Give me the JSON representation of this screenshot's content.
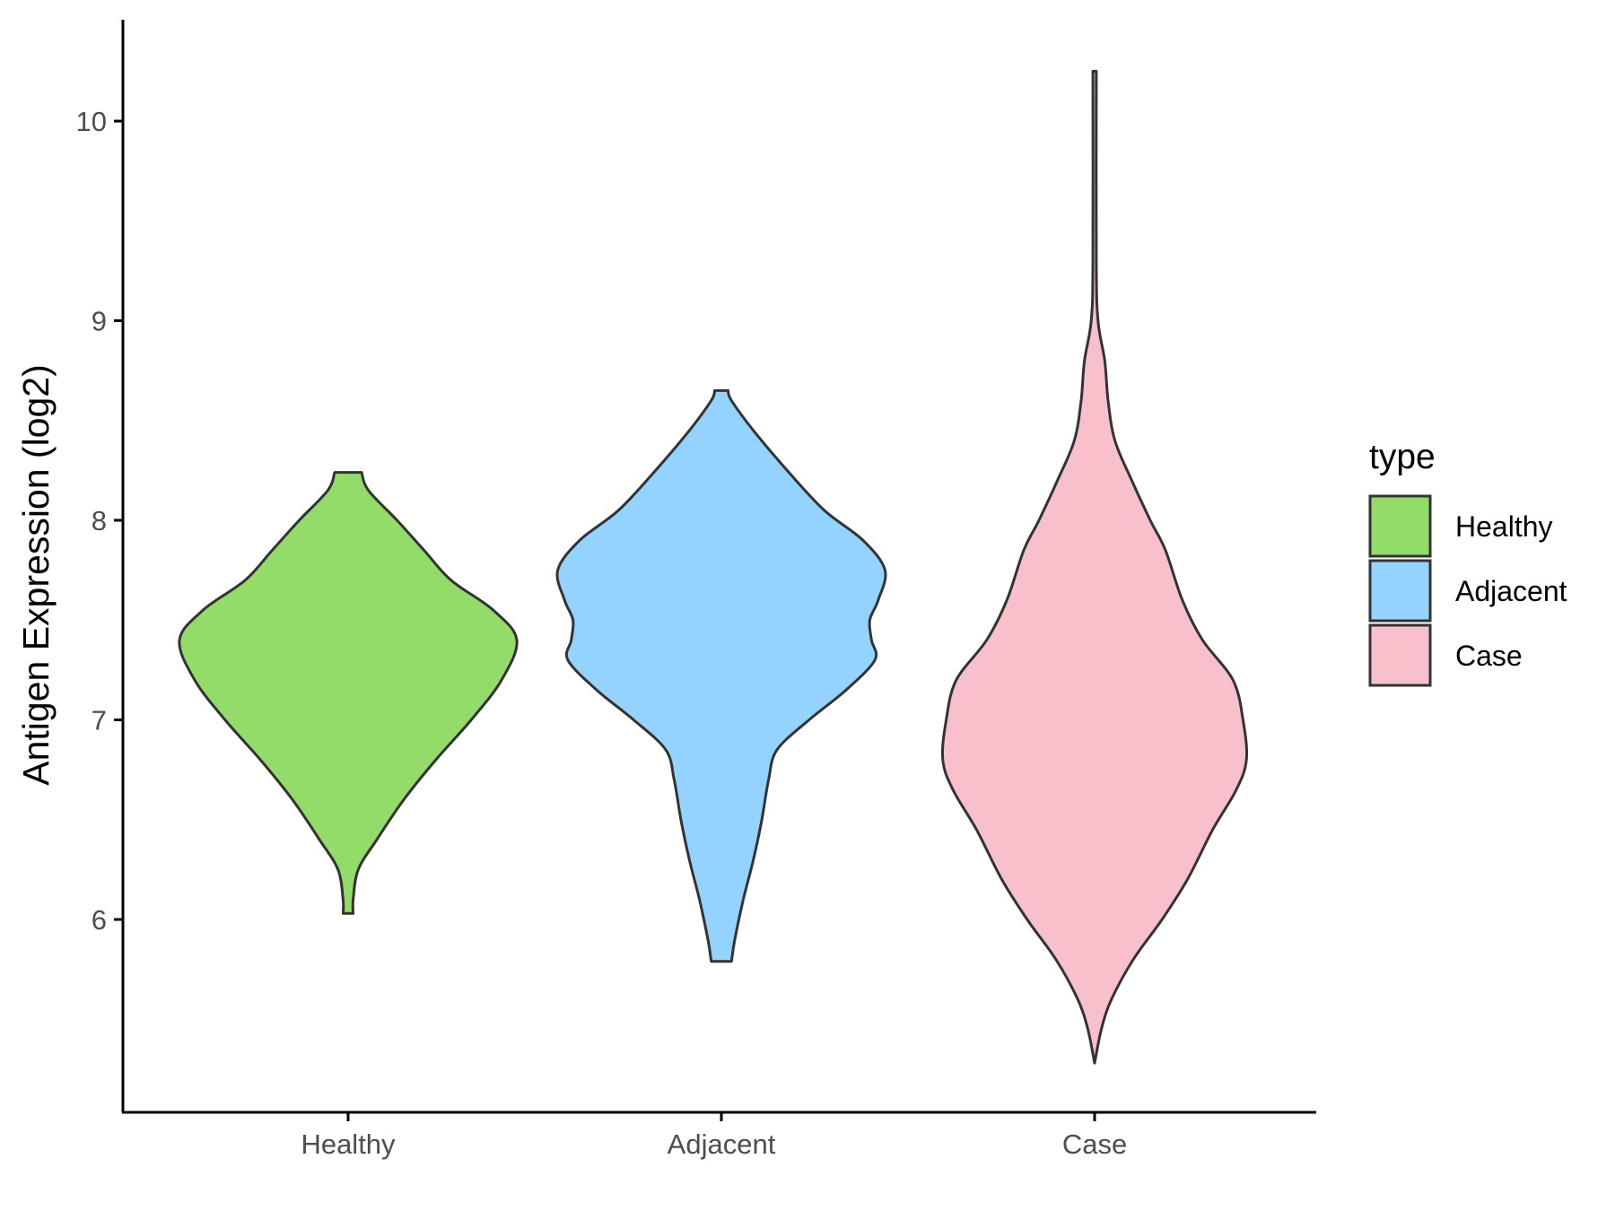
{
  "chart_data": {
    "type": "violin",
    "title": "",
    "xlabel": "",
    "ylabel": "Antigen Expression (log2)",
    "ylim": [
      5.1,
      10.5
    ],
    "yticks": [
      6,
      7,
      8,
      9,
      10
    ],
    "categories": [
      "Healthy",
      "Adjacent",
      "Case"
    ],
    "grid": false,
    "legend": {
      "title": "type",
      "position": "right",
      "entries": [
        "Healthy",
        "Adjacent",
        "Case"
      ]
    },
    "series": [
      {
        "name": "Healthy",
        "color": "#93dc69",
        "min": 6.03,
        "max": 8.24,
        "density": [
          [
            6.03,
            0.03
          ],
          [
            6.1,
            0.03
          ],
          [
            6.25,
            0.06
          ],
          [
            6.4,
            0.17
          ],
          [
            6.6,
            0.33
          ],
          [
            6.8,
            0.52
          ],
          [
            7.0,
            0.73
          ],
          [
            7.2,
            0.91
          ],
          [
            7.4,
            1.0
          ],
          [
            7.55,
            0.86
          ],
          [
            7.7,
            0.61
          ],
          [
            7.85,
            0.45
          ],
          [
            8.0,
            0.29
          ],
          [
            8.15,
            0.12
          ],
          [
            8.24,
            0.08
          ]
        ]
      },
      {
        "name": "Adjacent",
        "color": "#93d3fd",
        "min": 5.79,
        "max": 8.65,
        "density": [
          [
            5.79,
            0.06
          ],
          [
            5.9,
            0.08
          ],
          [
            6.1,
            0.13
          ],
          [
            6.3,
            0.19
          ],
          [
            6.5,
            0.24
          ],
          [
            6.7,
            0.28
          ],
          [
            6.85,
            0.33
          ],
          [
            7.0,
            0.52
          ],
          [
            7.15,
            0.74
          ],
          [
            7.3,
            0.91
          ],
          [
            7.4,
            0.89
          ],
          [
            7.5,
            0.88
          ],
          [
            7.6,
            0.93
          ],
          [
            7.75,
            0.97
          ],
          [
            7.9,
            0.84
          ],
          [
            8.05,
            0.61
          ],
          [
            8.25,
            0.39
          ],
          [
            8.45,
            0.19
          ],
          [
            8.6,
            0.06
          ],
          [
            8.65,
            0.04
          ]
        ]
      },
      {
        "name": "Case",
        "color": "#f7c0cb",
        "min": 5.28,
        "max": 10.25,
        "density": [
          [
            5.28,
            0.0
          ],
          [
            5.45,
            0.04
          ],
          [
            5.6,
            0.1
          ],
          [
            5.8,
            0.23
          ],
          [
            6.0,
            0.4
          ],
          [
            6.2,
            0.55
          ],
          [
            6.45,
            0.7
          ],
          [
            6.65,
            0.84
          ],
          [
            6.8,
            0.9
          ],
          [
            7.0,
            0.88
          ],
          [
            7.2,
            0.82
          ],
          [
            7.4,
            0.64
          ],
          [
            7.6,
            0.52
          ],
          [
            7.85,
            0.42
          ],
          [
            8.0,
            0.33
          ],
          [
            8.2,
            0.22
          ],
          [
            8.4,
            0.12
          ],
          [
            8.6,
            0.08
          ],
          [
            8.8,
            0.06
          ],
          [
            9.0,
            0.02
          ],
          [
            9.3,
            0.01
          ],
          [
            10.25,
            0.01
          ]
        ]
      }
    ]
  }
}
